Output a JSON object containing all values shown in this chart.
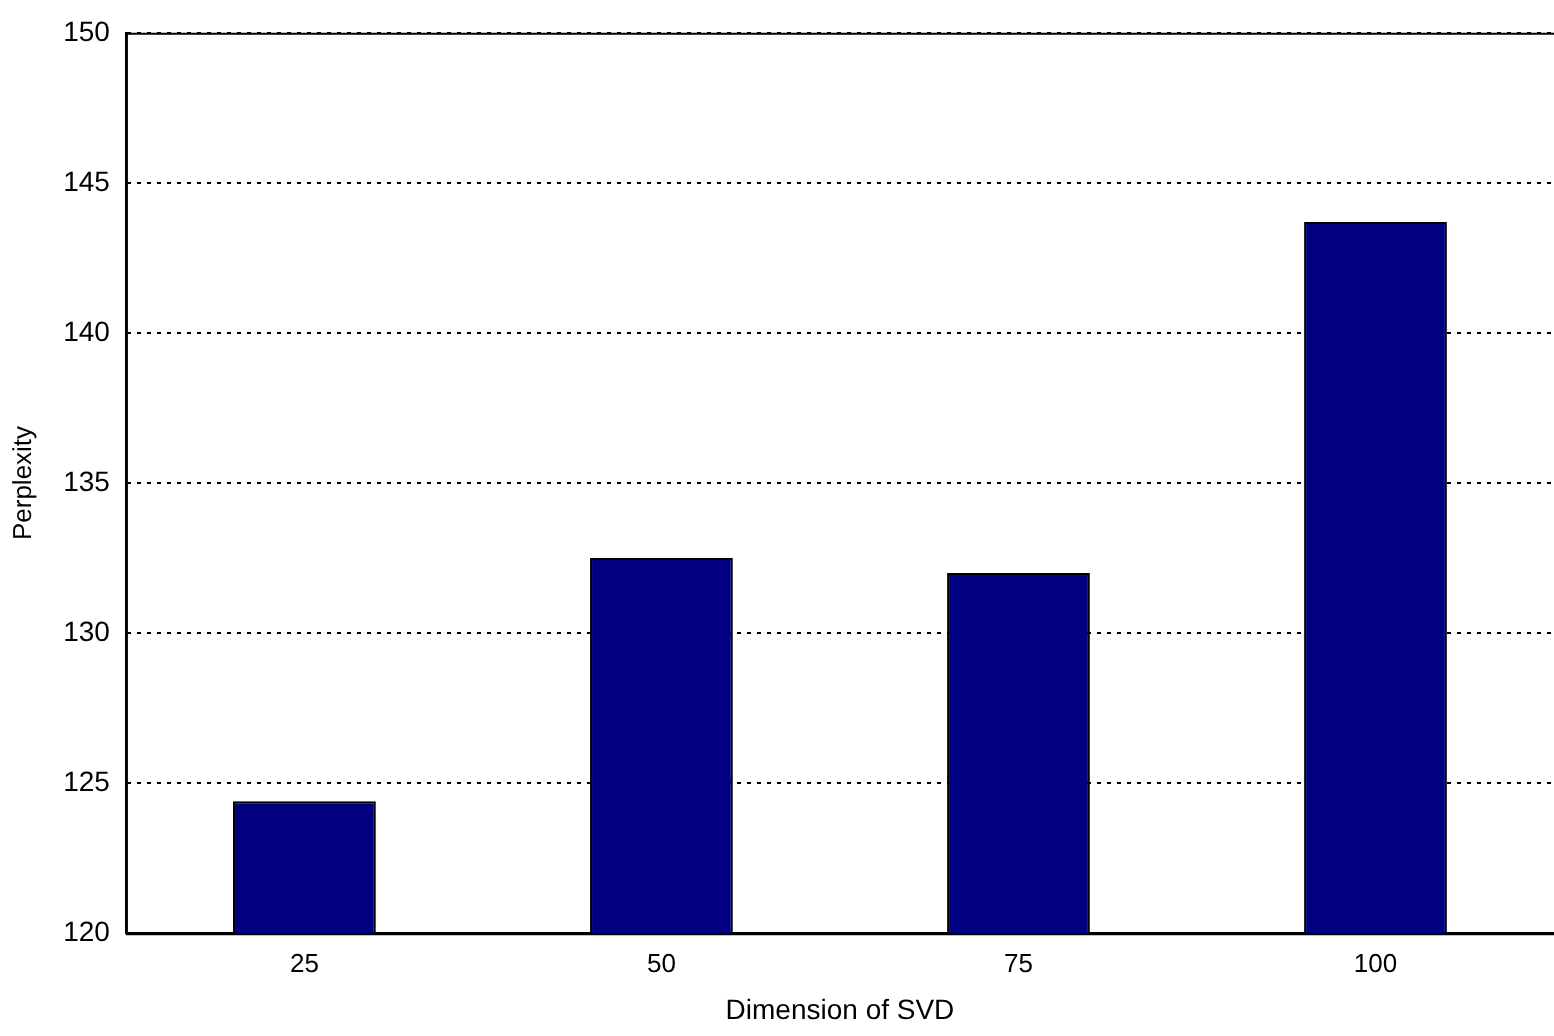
{
  "chart_data": {
    "type": "bar",
    "xlabel": "Dimension of SVD",
    "ylabel": "Perplexity",
    "categories": [
      "25",
      "50",
      "75",
      "100"
    ],
    "values": [
      124.4,
      132.5,
      132.0,
      143.7
    ],
    "color": "#000080",
    "ylim": [
      120,
      150
    ],
    "yticks": [
      120,
      125,
      130,
      135,
      140,
      145,
      150
    ],
    "grid": "y",
    "legend": false
  }
}
